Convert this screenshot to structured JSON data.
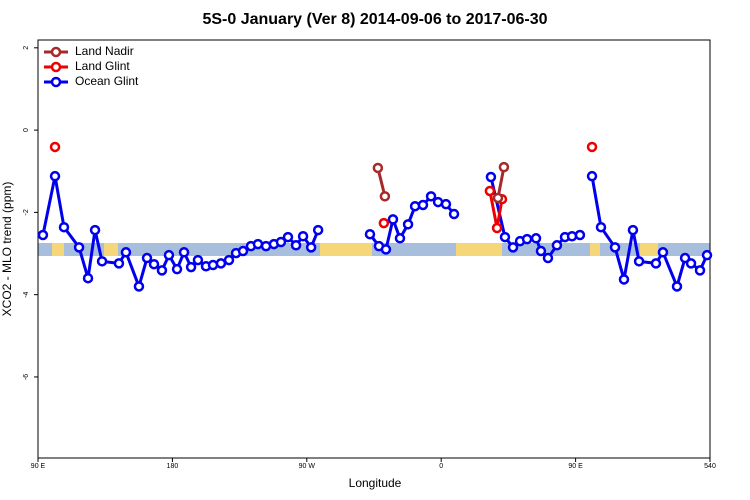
{
  "chart_data": {
    "type": "line",
    "title": "5S-0 January (Ver 8)   2014-09-06 to 2017-06-30",
    "x_label": "Longitude",
    "y_label": "XCO2 - MLO trend (ppm)",
    "xlim": [
      90,
      540
    ],
    "ylim": [
      -7.97,
      2.19
    ],
    "xticks": [
      {
        "value": 90,
        "label": "90 E"
      },
      180,
      {
        "value": 270,
        "label": "90 W"
      },
      {
        "value": 360,
        "label": "0"
      },
      {
        "value": 450,
        "label": "90 E"
      },
      540
    ],
    "yticks": [
      2,
      0,
      -2,
      -4,
      -6
    ],
    "legend": "top-left",
    "series": [
      {
        "name": "Land Nadir",
        "color": "#a52a2a",
        "x": [
          317.6,
          322.3,
          null,
          398.0,
          402.0
        ],
        "values": [
          -0.92,
          -1.61,
          null,
          -1.65,
          -0.9
        ]
      },
      {
        "name": "Land Glint",
        "color": "#ee0000",
        "x": [
          101.4,
          null,
          321.6,
          null,
          392.6,
          397.4,
          400.7,
          null,
          461.0
        ],
        "values": [
          -0.41,
          null,
          -2.26,
          null,
          -1.48,
          -2.38,
          -1.68,
          null,
          -0.41
        ]
      },
      {
        "name": "Ocean Glint",
        "color": "#0000ee",
        "x": [
          93.3,
          101.4,
          107.4,
          117.5,
          123.5,
          128.2,
          132.9,
          144.2,
          148.9,
          157.6,
          163.0,
          167.7,
          173.0,
          177.7,
          183.1,
          187.8,
          192.5,
          197.1,
          202.5,
          207.2,
          212.5,
          217.9,
          222.6,
          227.3,
          232.6,
          237.3,
          242.7,
          248.0,
          252.7,
          257.4,
          262.8,
          267.5,
          272.9,
          277.6,
          null,
          312.3,
          318.3,
          323.0,
          327.7,
          332.4,
          337.8,
          342.5,
          347.8,
          353.2,
          357.9,
          363.2,
          368.6,
          null,
          393.3,
          402.7,
          408.1,
          412.8,
          417.5,
          423.5,
          426.8,
          431.5,
          437.5,
          442.9,
          447.6,
          452.9,
          null,
          461.0,
          467.0,
          476.4,
          482.4,
          488.4,
          492.5,
          503.8,
          508.5,
          517.9,
          523.3,
          527.3,
          533.3,
          538.0
        ],
        "values": [
          -2.55,
          -1.12,
          -2.36,
          -2.85,
          -3.6,
          -2.43,
          -3.19,
          -3.24,
          -2.97,
          -3.8,
          -3.11,
          -3.26,
          -3.41,
          -3.04,
          -3.38,
          -2.97,
          -3.33,
          -3.16,
          -3.31,
          -3.28,
          -3.24,
          -3.16,
          -2.99,
          -2.94,
          -2.82,
          -2.77,
          -2.82,
          -2.77,
          -2.72,
          -2.6,
          -2.8,
          -2.58,
          -2.85,
          -2.43,
          null,
          -2.53,
          -2.82,
          -2.9,
          -2.17,
          -2.63,
          -2.29,
          -1.85,
          -1.82,
          -1.61,
          -1.75,
          -1.8,
          -2.04,
          null,
          -1.14,
          -2.6,
          -2.85,
          -2.7,
          -2.65,
          -2.63,
          -2.94,
          -3.11,
          -2.8,
          -2.6,
          -2.58,
          -2.55,
          null,
          -1.12,
          -2.36,
          -2.85,
          -3.63,
          -2.43,
          -3.19,
          -3.24,
          -2.97,
          -3.8,
          -3.11,
          -3.24,
          -3.41,
          -3.04
        ]
      }
    ]
  }
}
